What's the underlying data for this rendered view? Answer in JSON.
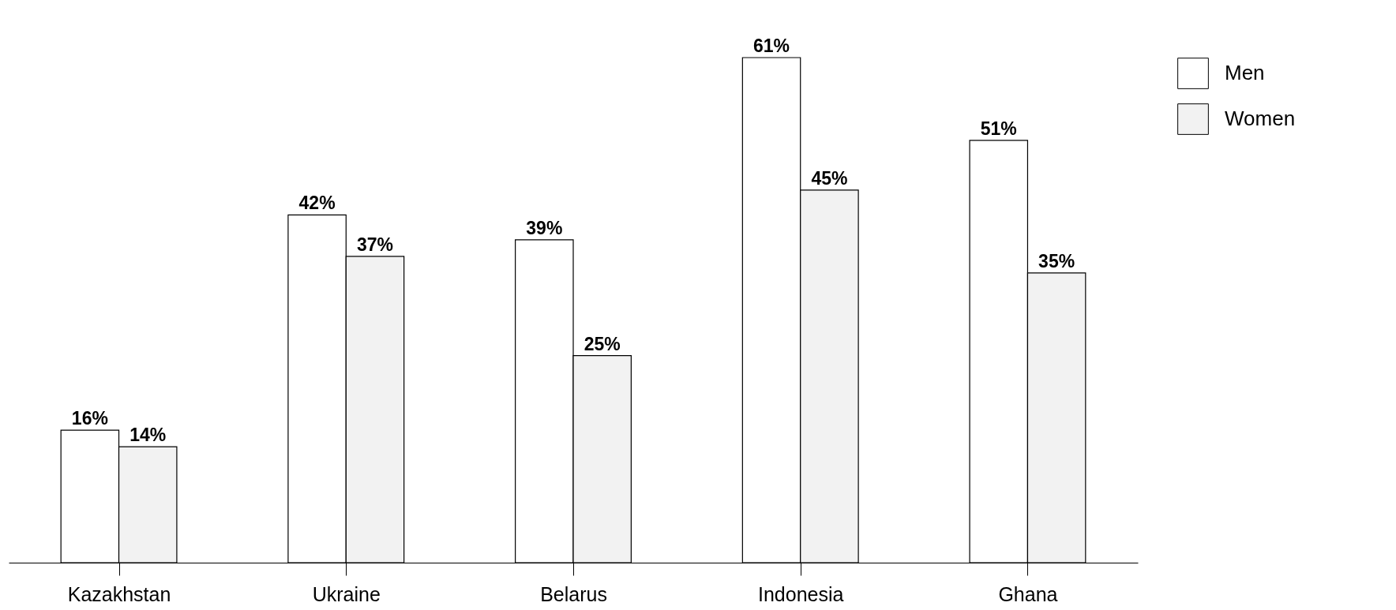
{
  "chart_data": {
    "type": "bar",
    "categories": [
      "Kazakhstan",
      "Ukraine",
      "Belarus",
      "Indonesia",
      "Ghana"
    ],
    "series": [
      {
        "name": "Men",
        "color": "#ffffff",
        "values": [
          16,
          42,
          39,
          61,
          51
        ],
        "value_labels": [
          "16%",
          "42%",
          "39%",
          "61%",
          "51%"
        ]
      },
      {
        "name": "Women",
        "color": "#f2f2f2",
        "values": [
          14,
          37,
          25,
          45,
          35
        ],
        "value_labels": [
          "14%",
          "37%",
          "25%",
          "45%",
          "35%"
        ]
      }
    ],
    "legend": "right"
  }
}
